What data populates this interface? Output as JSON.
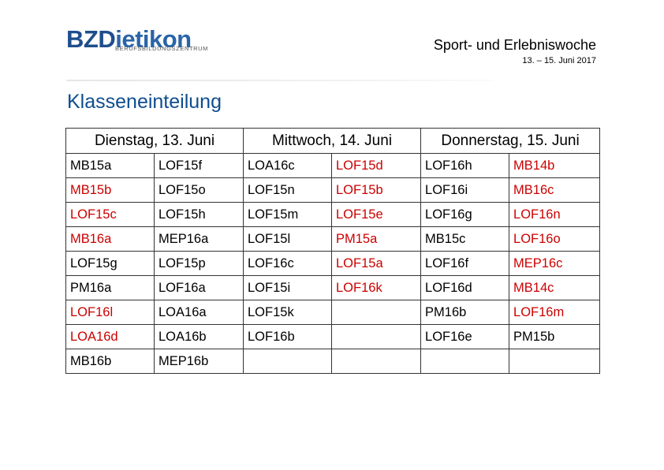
{
  "logo": {
    "brand_a": "BZD",
    "brand_b": "ietikon",
    "subtitle": "BERUFSBILDUNGSZENTRUM"
  },
  "header": {
    "title": "Sport- und Erlebniswoche",
    "date": "13. – 15. Juni 2017"
  },
  "page_title": "Klasseneinteilung",
  "colors": {
    "title_blue": "#0e4d8f",
    "red": "#cc0000",
    "black": "#000000"
  },
  "days": [
    "Dienstag, 13. Juni",
    "Mittwoch, 14. Juni",
    "Donnerstag, 15. Juni"
  ],
  "rows": [
    [
      {
        "text": "MB15a",
        "color": "black"
      },
      {
        "text": "LOF15f",
        "color": "black"
      },
      {
        "text": "LOA16c",
        "color": "black"
      },
      {
        "text": "LOF15d",
        "color": "red"
      },
      {
        "text": "LOF16h",
        "color": "black"
      },
      {
        "text": "MB14b",
        "color": "red"
      }
    ],
    [
      {
        "text": "MB15b",
        "color": "red"
      },
      {
        "text": "LOF15o",
        "color": "black"
      },
      {
        "text": "LOF15n",
        "color": "black"
      },
      {
        "text": "LOF15b",
        "color": "red"
      },
      {
        "text": "LOF16i",
        "color": "black"
      },
      {
        "text": "MB16c",
        "color": "red"
      }
    ],
    [
      {
        "text": "LOF15c",
        "color": "red"
      },
      {
        "text": "LOF15h",
        "color": "black"
      },
      {
        "text": "LOF15m",
        "color": "black"
      },
      {
        "text": "LOF15e",
        "color": "red"
      },
      {
        "text": "LOF16g",
        "color": "black"
      },
      {
        "text": "LOF16n",
        "color": "red"
      }
    ],
    [
      {
        "text": "MB16a",
        "color": "red"
      },
      {
        "text": "MEP16a",
        "color": "black"
      },
      {
        "text": "LOF15l",
        "color": "black"
      },
      {
        "text": "PM15a",
        "color": "red"
      },
      {
        "text": "MB15c",
        "color": "black"
      },
      {
        "text": "LOF16o",
        "color": "red"
      }
    ],
    [
      {
        "text": "LOF15g",
        "color": "black"
      },
      {
        "text": "LOF15p",
        "color": "black"
      },
      {
        "text": "LOF16c",
        "color": "black"
      },
      {
        "text": "LOF15a",
        "color": "red"
      },
      {
        "text": "LOF16f",
        "color": "black"
      },
      {
        "text": "MEP16c",
        "color": "red"
      }
    ],
    [
      {
        "text": "PM16a",
        "color": "black"
      },
      {
        "text": "LOF16a",
        "color": "black"
      },
      {
        "text": "LOF15i",
        "color": "black"
      },
      {
        "text": "LOF16k",
        "color": "red"
      },
      {
        "text": "LOF16d",
        "color": "black"
      },
      {
        "text": "MB14c",
        "color": "red"
      }
    ],
    [
      {
        "text": "LOF16l",
        "color": "red"
      },
      {
        "text": "LOA16a",
        "color": "black"
      },
      {
        "text": "LOF15k",
        "color": "black"
      },
      {
        "text": "",
        "color": "black"
      },
      {
        "text": "PM16b",
        "color": "black"
      },
      {
        "text": "LOF16m",
        "color": "red"
      }
    ],
    [
      {
        "text": "LOA16d",
        "color": "red"
      },
      {
        "text": "LOA16b",
        "color": "black"
      },
      {
        "text": "LOF16b",
        "color": "black"
      },
      {
        "text": "",
        "color": "black"
      },
      {
        "text": "LOF16e",
        "color": "black"
      },
      {
        "text": "PM15b",
        "color": "black"
      }
    ],
    [
      {
        "text": "MB16b",
        "color": "black"
      },
      {
        "text": "MEP16b",
        "color": "black"
      },
      {
        "text": "",
        "color": "black"
      },
      {
        "text": "",
        "color": "black"
      },
      {
        "text": "",
        "color": "black"
      },
      {
        "text": "",
        "color": "black"
      }
    ]
  ]
}
